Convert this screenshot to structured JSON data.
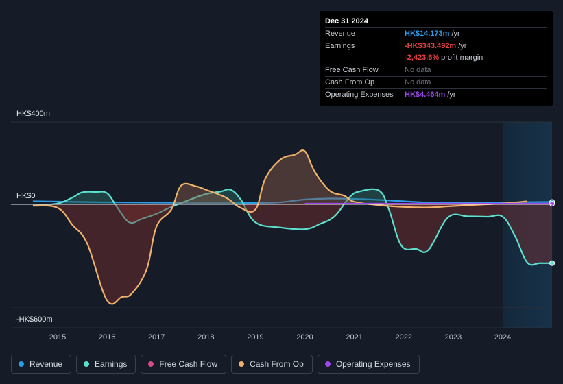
{
  "chart_data": {
    "type": "line",
    "title": "",
    "xlabel": "",
    "ylabel": "",
    "ylim": [
      -600,
      400
    ],
    "xlim": [
      2014.5,
      2025.0
    ],
    "y_tick_labels": [
      {
        "value": 400,
        "label": "HK$400m"
      },
      {
        "value": 0,
        "label": "HK$0"
      },
      {
        "value": -600,
        "label": "-HK$600m"
      }
    ],
    "x_tick_labels": [
      "2015",
      "2016",
      "2017",
      "2018",
      "2019",
      "2020",
      "2021",
      "2022",
      "2023",
      "2024"
    ],
    "x_ticks": [
      2015,
      2016,
      2017,
      2018,
      2019,
      2020,
      2021,
      2022,
      2023,
      2024
    ],
    "forecast_start": 2024.0,
    "series": [
      {
        "name": "Revenue",
        "color": "#2e9be6",
        "points": [
          [
            2014.5,
            18
          ],
          [
            2015,
            16
          ],
          [
            2016,
            12
          ],
          [
            2017,
            10
          ],
          [
            2018,
            8
          ],
          [
            2019,
            8
          ],
          [
            2019.5,
            12
          ],
          [
            2020,
            28
          ],
          [
            2020.5,
            34
          ],
          [
            2021,
            32
          ],
          [
            2021.5,
            26
          ],
          [
            2022,
            18
          ],
          [
            2022.5,
            10
          ],
          [
            2023,
            8
          ],
          [
            2023.5,
            8
          ],
          [
            2024,
            10
          ],
          [
            2024.5,
            13
          ],
          [
            2025,
            14
          ]
        ],
        "fill": false,
        "end_marker": true
      },
      {
        "name": "Earnings",
        "color": "#5ce0cf",
        "points": [
          [
            2014.5,
            -8
          ],
          [
            2015,
            5
          ],
          [
            2015.3,
            40
          ],
          [
            2015.5,
            70
          ],
          [
            2015.75,
            72
          ],
          [
            2016,
            65
          ],
          [
            2016.2,
            -15
          ],
          [
            2016.45,
            -105
          ],
          [
            2016.7,
            -85
          ],
          [
            2017,
            -55
          ],
          [
            2017.3,
            -15
          ],
          [
            2017.7,
            30
          ],
          [
            2018,
            60
          ],
          [
            2018.3,
            75
          ],
          [
            2018.5,
            85
          ],
          [
            2018.7,
            30
          ],
          [
            2019,
            -105
          ],
          [
            2019.5,
            -135
          ],
          [
            2020,
            -145
          ],
          [
            2020.3,
            -115
          ],
          [
            2020.6,
            -70
          ],
          [
            2020.9,
            40
          ],
          [
            2021.1,
            75
          ],
          [
            2021.5,
            80
          ],
          [
            2021.7,
            -30
          ],
          [
            2021.95,
            -240
          ],
          [
            2022.25,
            -260
          ],
          [
            2022.5,
            -265
          ],
          [
            2022.9,
            -75
          ],
          [
            2023.3,
            -70
          ],
          [
            2023.7,
            -72
          ],
          [
            2024.0,
            -72
          ],
          [
            2024.25,
            -185
          ],
          [
            2024.5,
            -340
          ],
          [
            2024.75,
            -343
          ],
          [
            2025.0,
            -343
          ]
        ],
        "fill": true,
        "end_marker": true
      },
      {
        "name": "Free Cash Flow",
        "color": "#d44b83",
        "points": [],
        "fill": false,
        "end_marker": false
      },
      {
        "name": "Cash From Op",
        "color": "#f0b26a",
        "points": [
          [
            2014.5,
            -8
          ],
          [
            2015,
            -20
          ],
          [
            2015.3,
            -120
          ],
          [
            2015.6,
            -230
          ],
          [
            2016,
            -560
          ],
          [
            2016.3,
            -540
          ],
          [
            2016.5,
            -520
          ],
          [
            2016.8,
            -380
          ],
          [
            2017,
            -130
          ],
          [
            2017.3,
            -30
          ],
          [
            2017.5,
            110
          ],
          [
            2017.8,
            105
          ],
          [
            2018,
            85
          ],
          [
            2018.4,
            40
          ],
          [
            2018.7,
            -20
          ],
          [
            2019,
            -30
          ],
          [
            2019.2,
            150
          ],
          [
            2019.5,
            260
          ],
          [
            2019.8,
            290
          ],
          [
            2020,
            310
          ],
          [
            2020.2,
            190
          ],
          [
            2020.5,
            80
          ],
          [
            2020.8,
            50
          ],
          [
            2021,
            15
          ],
          [
            2021.5,
            -5
          ],
          [
            2022,
            -15
          ],
          [
            2022.5,
            -18
          ],
          [
            2023,
            -10
          ],
          [
            2023.5,
            -2
          ],
          [
            2024,
            5
          ],
          [
            2024.5,
            18
          ]
        ],
        "fill": true,
        "end_marker": false
      },
      {
        "name": "Operating Expenses",
        "color": "#9d4ae8",
        "points": [
          [
            2020,
            4
          ],
          [
            2021,
            4
          ],
          [
            2022,
            4
          ],
          [
            2023,
            4
          ],
          [
            2024,
            4
          ],
          [
            2025,
            4
          ]
        ],
        "fill": false,
        "end_marker": true
      }
    ]
  },
  "tooltip": {
    "date": "Dec 31 2024",
    "rows": [
      {
        "label": "Revenue",
        "value": "HK$14.173m",
        "unit": "/yr",
        "color": "#2e9be6"
      },
      {
        "label": "Earnings",
        "value": "-HK$343.492m",
        "unit": "/yr",
        "color": "#e5413f"
      },
      {
        "label": "",
        "value": "-2,423.6%",
        "unit": "profit margin",
        "color": "#e5413f"
      },
      {
        "label": "Free Cash Flow",
        "value": "No data",
        "unit": "",
        "color": "#6c727c"
      },
      {
        "label": "Cash From Op",
        "value": "No data",
        "unit": "",
        "color": "#6c727c"
      },
      {
        "label": "Operating Expenses",
        "value": "HK$4.464m",
        "unit": "/yr",
        "color": "#9d4ae8"
      }
    ]
  },
  "legend": [
    {
      "label": "Revenue",
      "color": "#2e9be6"
    },
    {
      "label": "Earnings",
      "color": "#5ce0cf"
    },
    {
      "label": "Free Cash Flow",
      "color": "#d44b83"
    },
    {
      "label": "Cash From Op",
      "color": "#f0b26a"
    },
    {
      "label": "Operating Expenses",
      "color": "#9d4ae8"
    }
  ]
}
